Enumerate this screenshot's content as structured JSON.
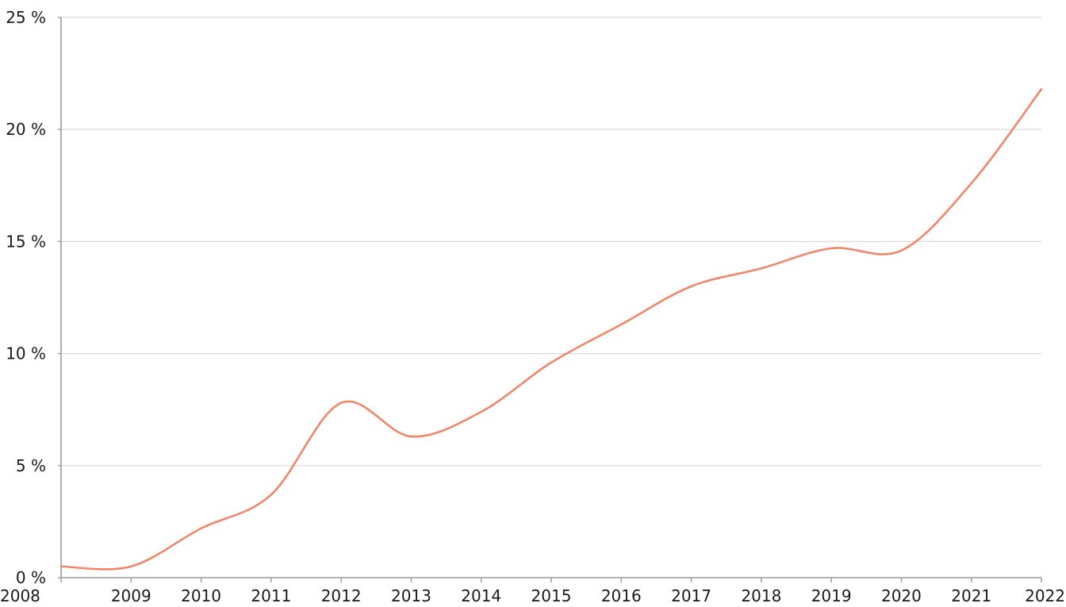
{
  "chart_data": {
    "type": "line",
    "title": "",
    "xlabel": "",
    "ylabel": "",
    "x": [
      "2008",
      "2009",
      "2010",
      "2011",
      "2012",
      "2013",
      "2014",
      "2015",
      "2016",
      "2017",
      "2018",
      "2019",
      "2020",
      "2021",
      "2022"
    ],
    "series": [
      {
        "values": [
          0.5,
          0.5,
          2.2,
          3.7,
          7.8,
          6.3,
          7.4,
          9.6,
          11.3,
          13.0,
          13.8,
          14.7,
          14.6,
          17.6,
          21.8
        ],
        "color": "#f0866a"
      }
    ],
    "ylim": [
      0,
      25
    ],
    "yticks": [
      0,
      5,
      10,
      15,
      20,
      25
    ],
    "ytick_labels": [
      "0 %",
      "5 %",
      "10 %",
      "15 %",
      "20 %",
      "25 %"
    ],
    "grid": true,
    "legend": "none"
  }
}
